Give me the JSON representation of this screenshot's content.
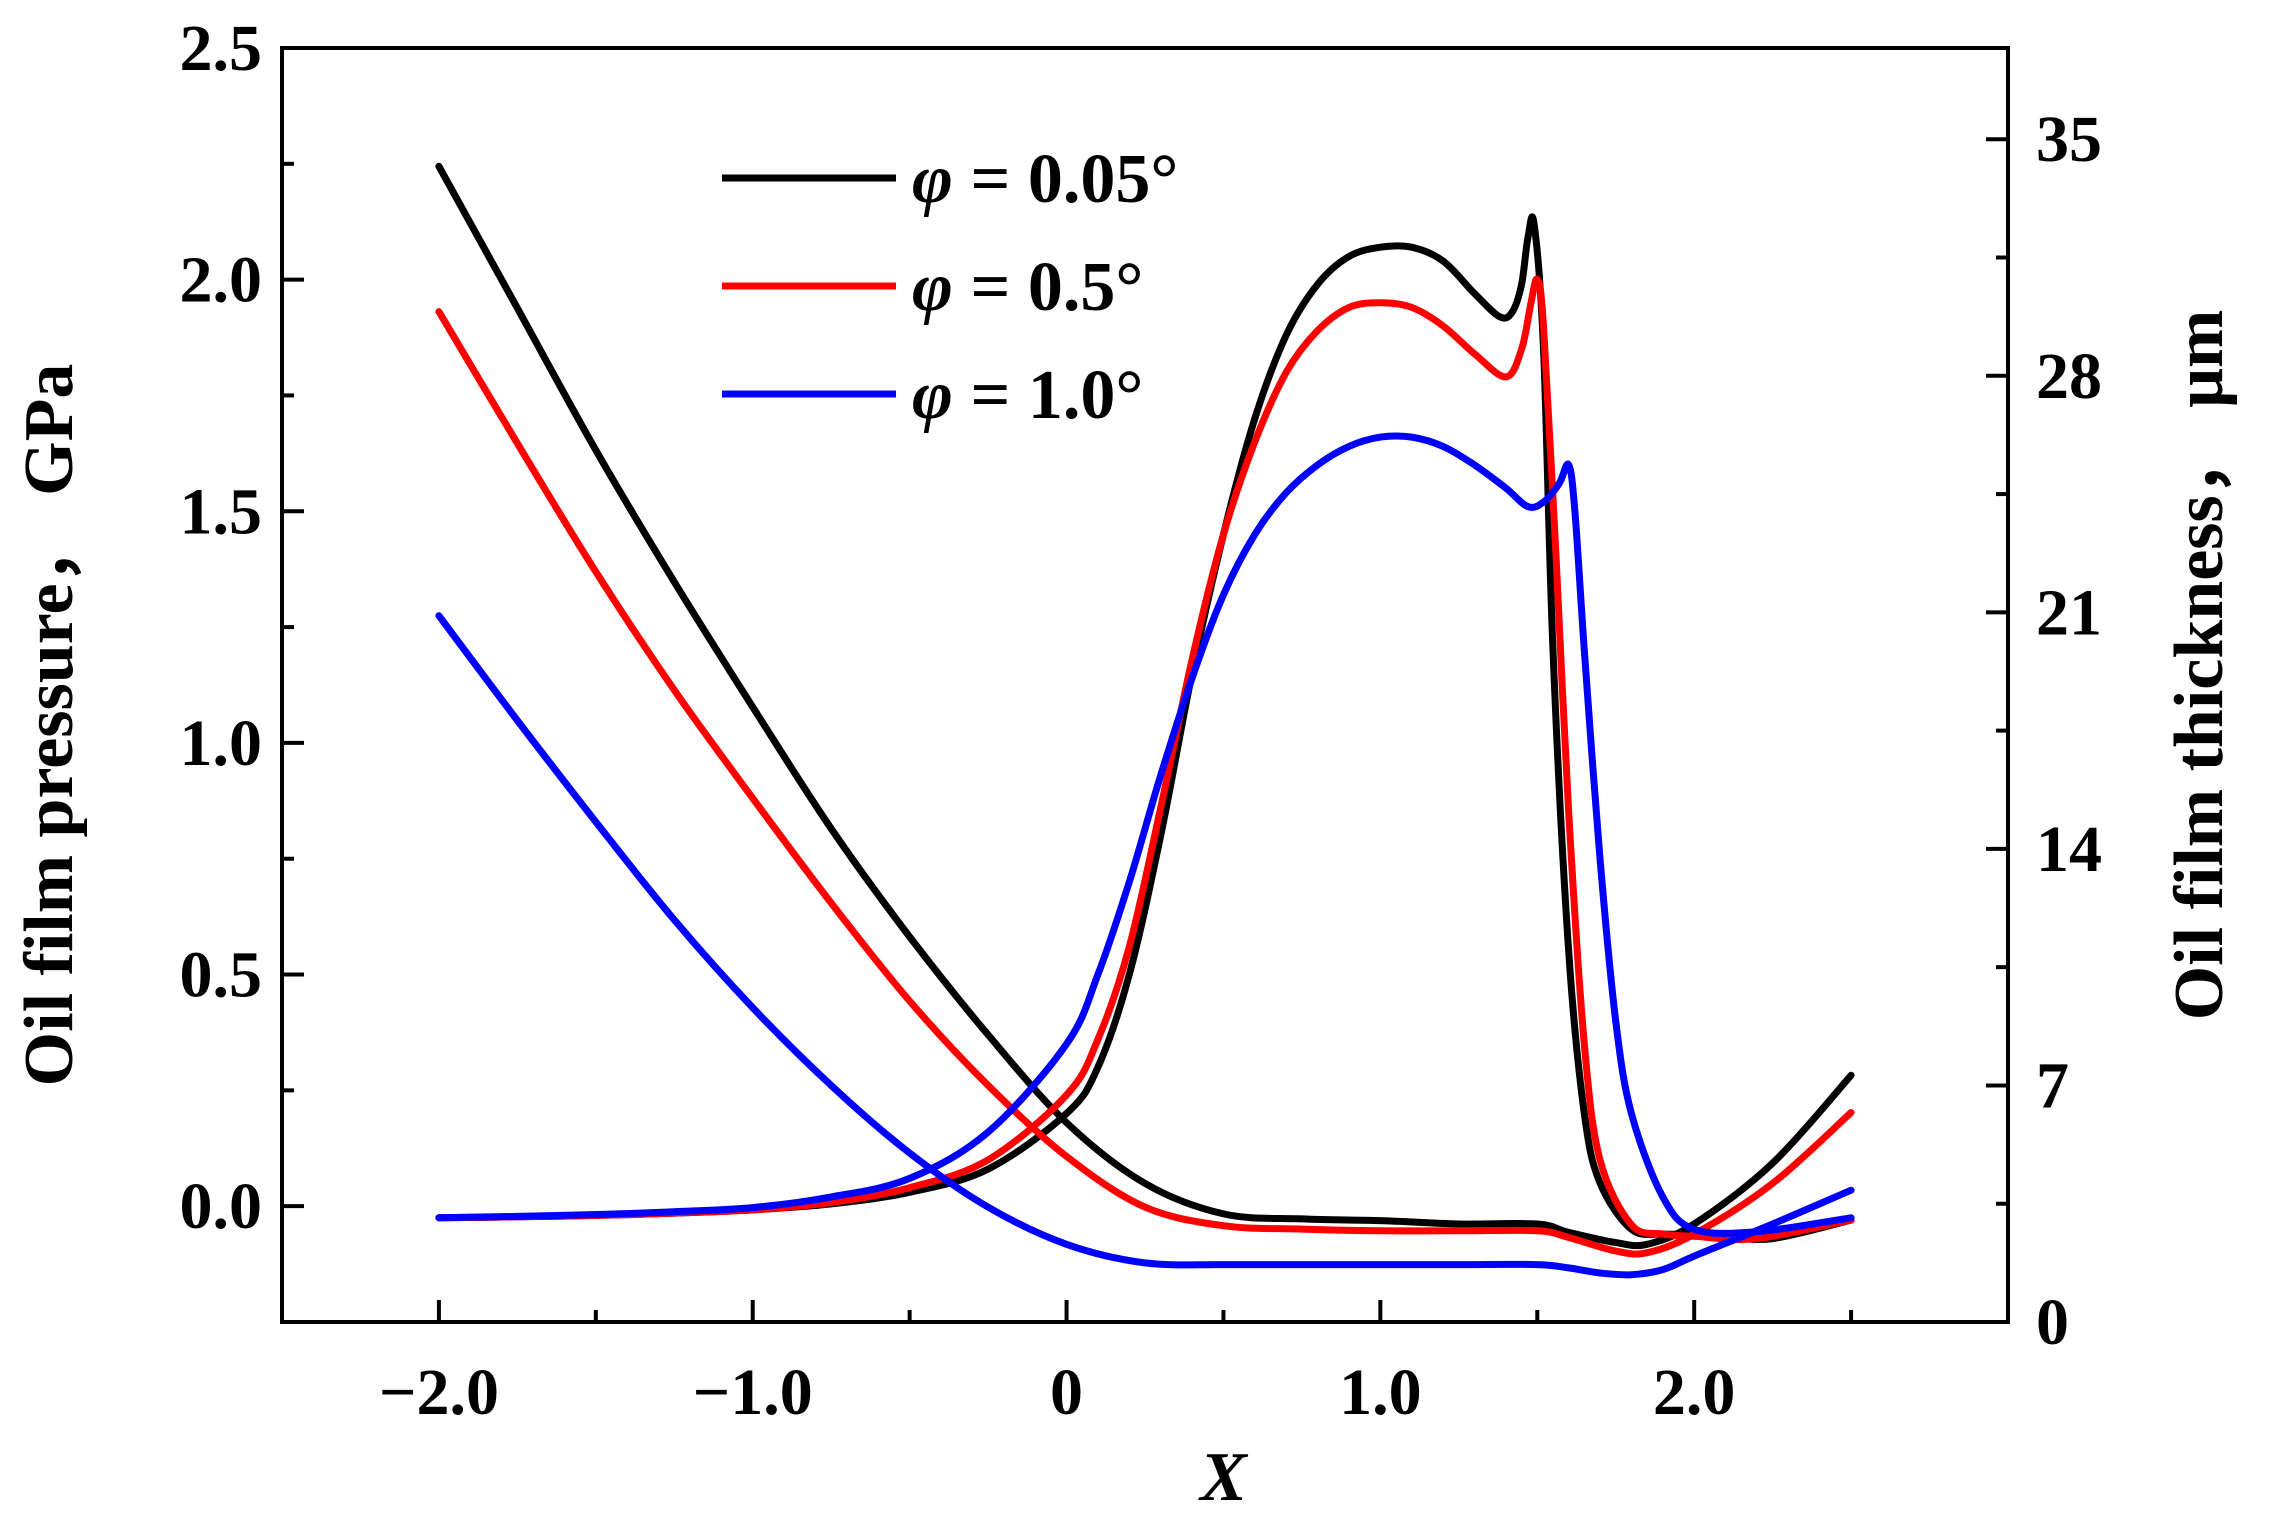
{
  "chart_data": {
    "type": "line",
    "title": "",
    "xlabel": "X",
    "ylabel_left": "Oil film pressure， GPa",
    "ylabel_right": "Oil film thickness， μm",
    "xlim": [
      -2.5,
      3.0
    ],
    "ylim_left": [
      -0.25,
      2.5
    ],
    "ylim_right": [
      0,
      37.7
    ],
    "x_ticks": [
      -2.0,
      -1.0,
      0,
      1.0,
      2.0
    ],
    "x_tick_labels": [
      "−2.0",
      "−1.0",
      "0",
      "1.0",
      "2.0"
    ],
    "y_left_ticks": [
      0.0,
      0.5,
      1.0,
      1.5,
      2.0,
      2.5
    ],
    "y_left_tick_labels": [
      "0.0",
      "0.5",
      "1.0",
      "1.5",
      "2.0",
      "2.5"
    ],
    "y_right_ticks": [
      0,
      7,
      14,
      21,
      28,
      35
    ],
    "y_right_tick_labels": [
      "0",
      "7",
      "14",
      "21",
      "28",
      "35"
    ],
    "grid": false,
    "legend_position": "top-center",
    "series": [
      {
        "name": "φ = 0.05°",
        "label_symbol": "φ",
        "label_value": " = 0.05°",
        "color": "#000000",
        "pressure": {
          "x": [
            -2.0,
            -1.75,
            -1.5,
            -1.25,
            -1.0,
            -0.75,
            -0.5,
            -0.25,
            0.0,
            0.1,
            0.2,
            0.3,
            0.4,
            0.5,
            0.6,
            0.7,
            0.8,
            0.9,
            1.0,
            1.1,
            1.2,
            1.3,
            1.38,
            1.42,
            1.45,
            1.47,
            1.49,
            1.52,
            1.55,
            1.6,
            1.65,
            1.7,
            1.8,
            1.9,
            2.0,
            2.1,
            2.25,
            2.5
          ],
          "y": [
            -0.025,
            -0.023,
            -0.02,
            -0.015,
            -0.008,
            0.005,
            0.03,
            0.08,
            0.2,
            0.3,
            0.5,
            0.8,
            1.15,
            1.45,
            1.7,
            1.88,
            1.99,
            2.05,
            2.07,
            2.07,
            2.04,
            1.97,
            1.92,
            1.93,
            1.99,
            2.09,
            2.12,
            1.85,
            1.2,
            0.55,
            0.2,
            0.05,
            -0.05,
            -0.06,
            -0.06,
            -0.065,
            -0.07,
            -0.03
          ]
        },
        "thickness": {
          "x": [
            -2.0,
            -1.75,
            -1.5,
            -1.25,
            -1.0,
            -0.75,
            -0.5,
            -0.25,
            0.0,
            0.25,
            0.5,
            0.75,
            1.0,
            1.25,
            1.5,
            1.6,
            1.75,
            1.85,
            2.0,
            2.25,
            2.5
          ],
          "y": [
            34.2,
            30.0,
            25.8,
            21.9,
            18.2,
            14.6,
            11.4,
            8.5,
            5.9,
            4.1,
            3.2,
            3.05,
            3.0,
            2.9,
            2.9,
            2.65,
            2.35,
            2.3,
            2.9,
            4.7,
            7.3
          ]
        }
      },
      {
        "name": "φ = 0.5°",
        "label_symbol": "φ",
        "label_value": " = 0.5°",
        "color": "#ff0000",
        "pressure": {
          "x": [
            -2.0,
            -1.75,
            -1.5,
            -1.25,
            -1.0,
            -0.75,
            -0.5,
            -0.25,
            0.0,
            0.1,
            0.2,
            0.3,
            0.4,
            0.5,
            0.6,
            0.7,
            0.8,
            0.9,
            1.0,
            1.1,
            1.2,
            1.3,
            1.4,
            1.45,
            1.48,
            1.5,
            1.52,
            1.56,
            1.6,
            1.65,
            1.7,
            1.8,
            1.9,
            2.0,
            2.2,
            2.5
          ],
          "y": [
            -0.025,
            -0.023,
            -0.02,
            -0.015,
            -0.008,
            0.008,
            0.04,
            0.1,
            0.24,
            0.36,
            0.56,
            0.86,
            1.18,
            1.45,
            1.65,
            1.8,
            1.89,
            1.94,
            1.95,
            1.94,
            1.9,
            1.84,
            1.79,
            1.85,
            1.95,
            2.0,
            1.9,
            1.4,
            0.85,
            0.35,
            0.1,
            -0.04,
            -0.06,
            -0.065,
            -0.07,
            -0.03
          ]
        },
        "thickness": {
          "x": [
            -2.0,
            -1.75,
            -1.5,
            -1.25,
            -1.0,
            -0.75,
            -0.5,
            -0.25,
            0.0,
            0.25,
            0.5,
            0.75,
            1.0,
            1.25,
            1.5,
            1.6,
            1.75,
            1.85,
            2.0,
            2.25,
            2.5
          ],
          "y": [
            29.9,
            26.0,
            22.2,
            18.7,
            15.5,
            12.4,
            9.5,
            7.0,
            4.9,
            3.4,
            2.85,
            2.75,
            2.7,
            2.7,
            2.7,
            2.5,
            2.1,
            2.05,
            2.6,
            4.1,
            6.2
          ]
        }
      },
      {
        "name": "φ = 1.0°",
        "label_symbol": "φ",
        "label_value": " = 1.0°",
        "color": "#0000ff",
        "pressure": {
          "x": [
            -2.0,
            -1.75,
            -1.5,
            -1.25,
            -1.0,
            -0.75,
            -0.5,
            -0.25,
            0.0,
            0.1,
            0.2,
            0.3,
            0.4,
            0.5,
            0.6,
            0.7,
            0.8,
            0.9,
            1.0,
            1.1,
            1.2,
            1.3,
            1.4,
            1.47,
            1.52,
            1.57,
            1.6,
            1.62,
            1.65,
            1.7,
            1.75,
            1.8,
            1.9,
            2.0,
            2.2,
            2.5
          ],
          "y": [
            -0.025,
            -0.022,
            -0.018,
            -0.012,
            -0.003,
            0.02,
            0.06,
            0.16,
            0.35,
            0.5,
            0.7,
            0.93,
            1.14,
            1.32,
            1.45,
            1.54,
            1.6,
            1.64,
            1.66,
            1.66,
            1.64,
            1.6,
            1.55,
            1.51,
            1.52,
            1.56,
            1.6,
            1.5,
            1.2,
            0.75,
            0.4,
            0.2,
            0.02,
            -0.05,
            -0.055,
            -0.025
          ]
        },
        "thickness": {
          "x": [
            -2.0,
            -1.75,
            -1.5,
            -1.25,
            -1.0,
            -0.75,
            -0.5,
            -0.25,
            0.0,
            0.25,
            0.5,
            0.75,
            1.0,
            1.25,
            1.5,
            1.6,
            1.7,
            1.8,
            1.9,
            2.0,
            2.25,
            2.5
          ],
          "y": [
            20.9,
            17.8,
            14.8,
            11.9,
            9.3,
            7.0,
            5.0,
            3.4,
            2.3,
            1.75,
            1.7,
            1.7,
            1.7,
            1.7,
            1.7,
            1.6,
            1.45,
            1.4,
            1.55,
            1.95,
            2.9,
            3.9
          ]
        }
      }
    ]
  }
}
